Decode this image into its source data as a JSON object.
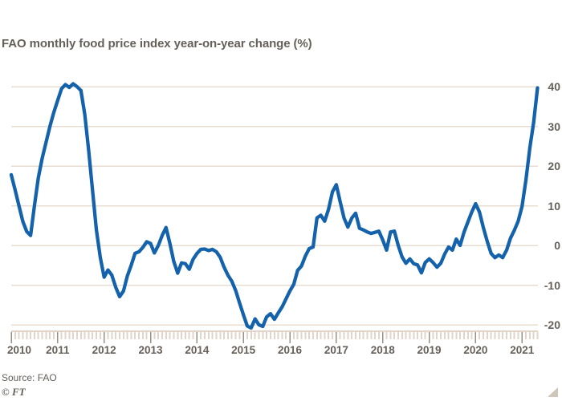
{
  "title": "FAO monthly food price index year-on-year change (%)",
  "footer": {
    "source": "Source: FAO",
    "credit": "© FT"
  },
  "colors": {
    "background": "#ffffff",
    "line": "#1362ab",
    "grid": "#e9ddd2",
    "axis": "#e1d5c9",
    "year_tick": "#998f85",
    "text": "#66605b",
    "triangle": "#cfc5b9"
  },
  "chart_data": {
    "type": "line",
    "title": "FAO monthly food price index year-on-year change (%)",
    "unit": "%",
    "frequency": "monthly",
    "start_month": "2010-01",
    "end_month": "2021-05",
    "grid": "horizontal",
    "y_axis_side": "right",
    "ylim": [
      -22,
      42
    ],
    "yticks": [
      40,
      30,
      20,
      10,
      0,
      -10,
      -20
    ],
    "xticks": [
      2010,
      2011,
      2012,
      2013,
      2014,
      2015,
      2016,
      2017,
      2018,
      2019,
      2020,
      2021
    ],
    "series": [
      {
        "name": "FAO food price index year-on-year change (%)",
        "values": [
          17.8,
          14,
          10,
          6,
          3.5,
          2.5,
          10,
          17,
          22,
          26,
          30,
          33.5,
          36.5,
          39.5,
          40.5,
          39.8,
          40.7,
          40,
          39,
          33,
          24,
          14,
          4,
          -3,
          -8,
          -6.2,
          -7.5,
          -10.5,
          -12.9,
          -11.5,
          -7.7,
          -5,
          -2,
          -1.6,
          -0.5,
          0.9,
          0.5,
          -1.9,
          0,
          2.5,
          4.5,
          0.5,
          -4,
          -7,
          -4.4,
          -4.6,
          -6,
          -3.5,
          -2,
          -1,
          -0.9,
          -1.3,
          -1,
          -1.6,
          -3,
          -5.5,
          -7.5,
          -9,
          -11.4,
          -14.5,
          -17.5,
          -20.3,
          -20.8,
          -18.5,
          -20,
          -20.4,
          -18,
          -17.2,
          -18.6,
          -17,
          -15.5,
          -13.5,
          -11.5,
          -9.8,
          -6.3,
          -5.2,
          -2.7,
          -0.8,
          -0.4,
          6.9,
          7.6,
          6.1,
          9.1,
          13.5,
          15.3,
          11,
          6.9,
          4.6,
          6.9,
          8.1,
          4.3,
          3.9,
          3.4,
          3,
          3.3,
          3.6,
          1.4,
          -1.2,
          3.4,
          3.6,
          0,
          -2.9,
          -4.5,
          -3.4,
          -4.6,
          -4.9,
          -6.9,
          -4.3,
          -3.4,
          -4.3,
          -5.5,
          -4.5,
          -2.2,
          -0.4,
          -1.2,
          1.6,
          0,
          3.3,
          5.9,
          8.4,
          10.5,
          8.4,
          4.5,
          1,
          -2,
          -3.1,
          -2.4,
          -3.1,
          -1.2,
          1.8,
          3.8,
          6.1,
          9.8,
          16.5,
          24.5,
          31,
          39.7
        ]
      }
    ]
  }
}
